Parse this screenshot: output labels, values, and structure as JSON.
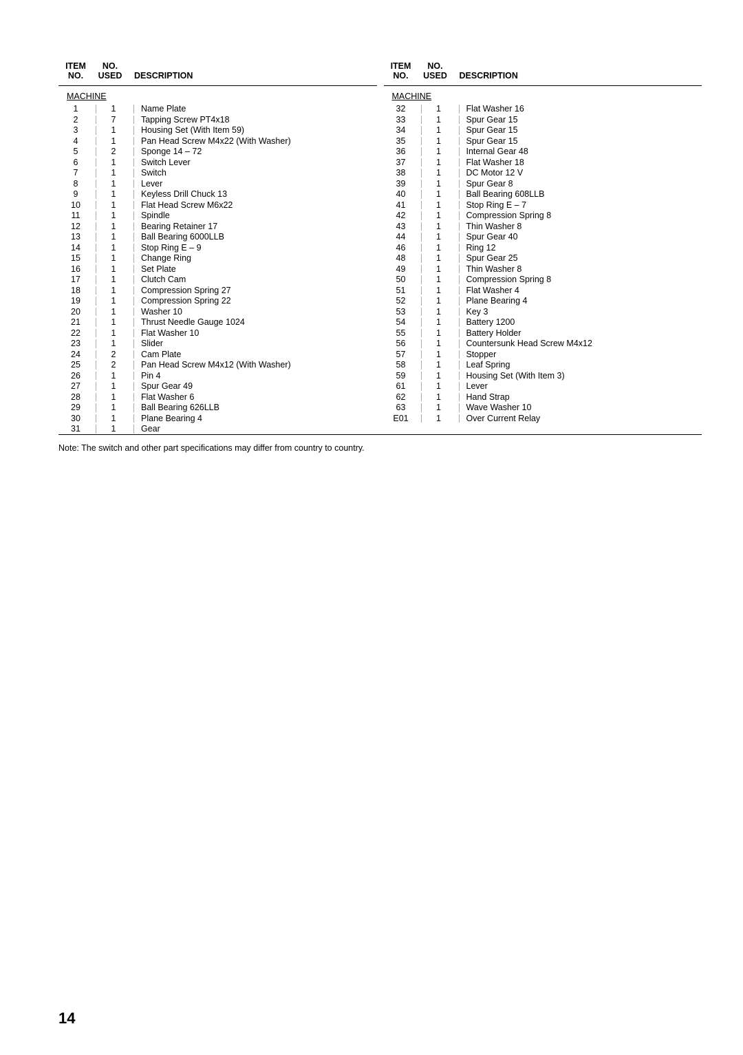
{
  "headers": {
    "item_no_line1": "ITEM",
    "item_no_line2": "NO.",
    "no_used_line1": "NO.",
    "no_used_line2": "USED",
    "description": "DESCRIPTION"
  },
  "section_label": "MACHINE",
  "note": "Note: The switch and other part specifications may differ from country to country.",
  "page_number": "14",
  "left_rows": [
    {
      "item": "1",
      "used": "1",
      "desc": "Name Plate"
    },
    {
      "item": "2",
      "used": "7",
      "desc": "Tapping Screw PT4x18"
    },
    {
      "item": "3",
      "used": "1",
      "desc": "Housing Set (With Item 59)"
    },
    {
      "item": "4",
      "used": "1",
      "desc": "Pan Head Screw M4x22 (With Washer)"
    },
    {
      "item": "5",
      "used": "2",
      "desc": "Sponge 14 – 72"
    },
    {
      "item": "6",
      "used": "1",
      "desc": "Switch Lever"
    },
    {
      "item": "7",
      "used": "1",
      "desc": "Switch"
    },
    {
      "item": "8",
      "used": "1",
      "desc": "Lever"
    },
    {
      "item": "9",
      "used": "1",
      "desc": "Keyless Drill Chuck 13"
    },
    {
      "item": "10",
      "used": "1",
      "desc": "Flat Head Screw M6x22"
    },
    {
      "item": "11",
      "used": "1",
      "desc": "Spindle"
    },
    {
      "item": "12",
      "used": "1",
      "desc": "Bearing Retainer 17"
    },
    {
      "item": "13",
      "used": "1",
      "desc": "Ball Bearing 6000LLB"
    },
    {
      "item": "14",
      "used": "1",
      "desc": "Stop Ring E – 9"
    },
    {
      "item": "15",
      "used": "1",
      "desc": "Change Ring"
    },
    {
      "item": "16",
      "used": "1",
      "desc": "Set Plate"
    },
    {
      "item": "17",
      "used": "1",
      "desc": "Clutch Cam"
    },
    {
      "item": "18",
      "used": "1",
      "desc": "Compression Spring 27"
    },
    {
      "item": "19",
      "used": "1",
      "desc": "Compression Spring 22"
    },
    {
      "item": "20",
      "used": "1",
      "desc": "Washer 10"
    },
    {
      "item": "21",
      "used": "1",
      "desc": "Thrust Needle Gauge 1024"
    },
    {
      "item": "22",
      "used": "1",
      "desc": "Flat Washer 10"
    },
    {
      "item": "23",
      "used": "1",
      "desc": "Slider"
    },
    {
      "item": "24",
      "used": "2",
      "desc": "Cam Plate"
    },
    {
      "item": "25",
      "used": "2",
      "desc": "Pan Head Screw M4x12 (With Washer)"
    },
    {
      "item": "26",
      "used": "1",
      "desc": "Pin 4"
    },
    {
      "item": "27",
      "used": "1",
      "desc": "Spur Gear 49"
    },
    {
      "item": "28",
      "used": "1",
      "desc": "Flat Washer 6"
    },
    {
      "item": "29",
      "used": "1",
      "desc": "Ball Bearing 626LLB"
    },
    {
      "item": "30",
      "used": "1",
      "desc": "Plane Bearing 4"
    },
    {
      "item": "31",
      "used": "1",
      "desc": "Gear"
    }
  ],
  "right_rows": [
    {
      "item": "32",
      "used": "1",
      "desc": "Flat Washer 16"
    },
    {
      "item": "33",
      "used": "1",
      "desc": "Spur Gear 15"
    },
    {
      "item": "34",
      "used": "1",
      "desc": "Spur Gear 15"
    },
    {
      "item": "35",
      "used": "1",
      "desc": "Spur Gear 15"
    },
    {
      "item": "36",
      "used": "1",
      "desc": "Internal Gear 48"
    },
    {
      "item": "37",
      "used": "1",
      "desc": "Flat Washer 18"
    },
    {
      "item": "38",
      "used": "1",
      "desc": "DC Motor 12 V"
    },
    {
      "item": "39",
      "used": "1",
      "desc": "Spur Gear 8"
    },
    {
      "item": "40",
      "used": "1",
      "desc": "Ball Bearing 608LLB"
    },
    {
      "item": "41",
      "used": "1",
      "desc": "Stop Ring E – 7"
    },
    {
      "item": "42",
      "used": "1",
      "desc": "Compression Spring 8"
    },
    {
      "item": "43",
      "used": "1",
      "desc": "Thin Washer 8"
    },
    {
      "item": "44",
      "used": "1",
      "desc": "Spur Gear 40"
    },
    {
      "item": "46",
      "used": "1",
      "desc": "Ring 12"
    },
    {
      "item": "48",
      "used": "1",
      "desc": "Spur Gear 25"
    },
    {
      "item": "49",
      "used": "1",
      "desc": "Thin Washer 8"
    },
    {
      "item": "50",
      "used": "1",
      "desc": "Compression Spring 8"
    },
    {
      "item": "51",
      "used": "1",
      "desc": "Flat Washer 4"
    },
    {
      "item": "52",
      "used": "1",
      "desc": "Plane Bearing 4"
    },
    {
      "item": "53",
      "used": "1",
      "desc": "Key 3"
    },
    {
      "item": "54",
      "used": "1",
      "desc": "Battery 1200"
    },
    {
      "item": "55",
      "used": "1",
      "desc": "Battery Holder"
    },
    {
      "item": "56",
      "used": "1",
      "desc": "Countersunk Head Screw M4x12"
    },
    {
      "item": "57",
      "used": "1",
      "desc": "Stopper"
    },
    {
      "item": "58",
      "used": "1",
      "desc": "Leaf Spring"
    },
    {
      "item": "59",
      "used": "1",
      "desc": "Housing Set (With Item 3)"
    },
    {
      "item": "61",
      "used": "1",
      "desc": "Lever"
    },
    {
      "item": "62",
      "used": "1",
      "desc": "Hand Strap"
    },
    {
      "item": "63",
      "used": "1",
      "desc": "Wave Washer 10"
    },
    {
      "item": "E01",
      "used": "1",
      "desc": "Over Current Relay"
    }
  ]
}
